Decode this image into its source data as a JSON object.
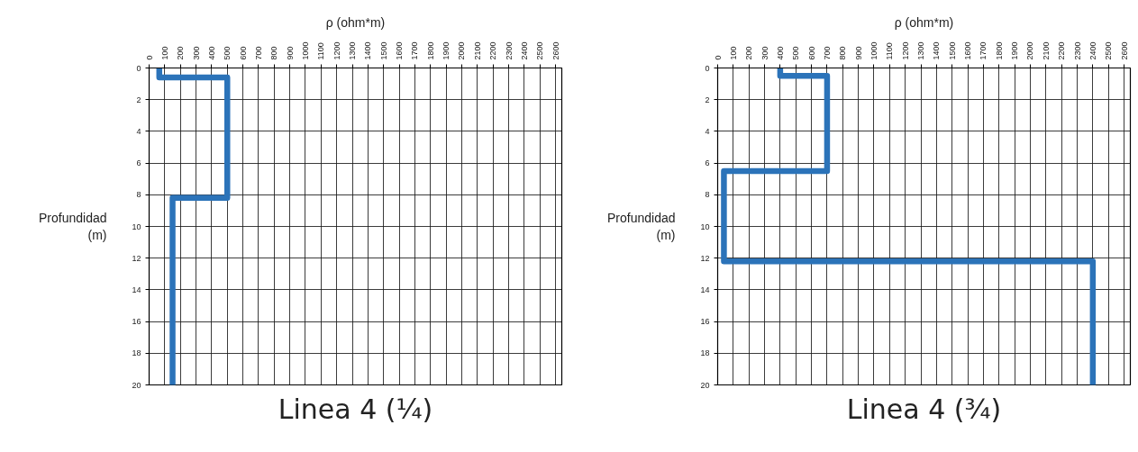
{
  "chart_data": [
    {
      "type": "line",
      "title": "Linea 4 (¼)",
      "xlabel": "ρ (ohm*m)",
      "ylabel": "Profundidad (m)",
      "series": [
        {
          "color": "#2b73b9",
          "x": [
            65,
            65,
            500,
            500,
            150,
            150
          ],
          "values": [
            0,
            0.6,
            0.6,
            8.2,
            8.2,
            20
          ]
        }
      ],
      "xlim": [
        0,
        2640
      ],
      "ylim": [
        20,
        0
      ],
      "xticks": [
        0,
        100,
        200,
        300,
        400,
        500,
        600,
        700,
        800,
        900,
        1000,
        1100,
        1200,
        1300,
        1400,
        1500,
        1600,
        1700,
        1800,
        1900,
        2000,
        2100,
        2200,
        2300,
        2400,
        2500,
        2600
      ],
      "yticks": [
        0,
        2,
        4,
        6,
        8,
        10,
        12,
        14,
        16,
        18,
        20
      ],
      "grid": true
    },
    {
      "type": "line",
      "title": "Linea 4 (¾)",
      "xlabel": "ρ (ohm*m)",
      "ylabel": "Profundidad (m)",
      "series": [
        {
          "color": "#2b73b9",
          "x": [
            400,
            400,
            700,
            700,
            40,
            40,
            2400,
            2400
          ],
          "values": [
            0,
            0.5,
            0.5,
            6.5,
            6.5,
            12.2,
            12.2,
            20
          ]
        }
      ],
      "xlim": [
        0,
        2640
      ],
      "ylim": [
        20,
        0
      ],
      "xticks": [
        0,
        100,
        200,
        300,
        400,
        500,
        600,
        700,
        800,
        900,
        1000,
        1100,
        1200,
        1300,
        1400,
        1500,
        1600,
        1700,
        1800,
        1900,
        2000,
        2100,
        2200,
        2300,
        2400,
        2500,
        2600
      ],
      "yticks": [
        0,
        2,
        4,
        6,
        8,
        10,
        12,
        14,
        16,
        18,
        20
      ],
      "grid": true
    }
  ]
}
